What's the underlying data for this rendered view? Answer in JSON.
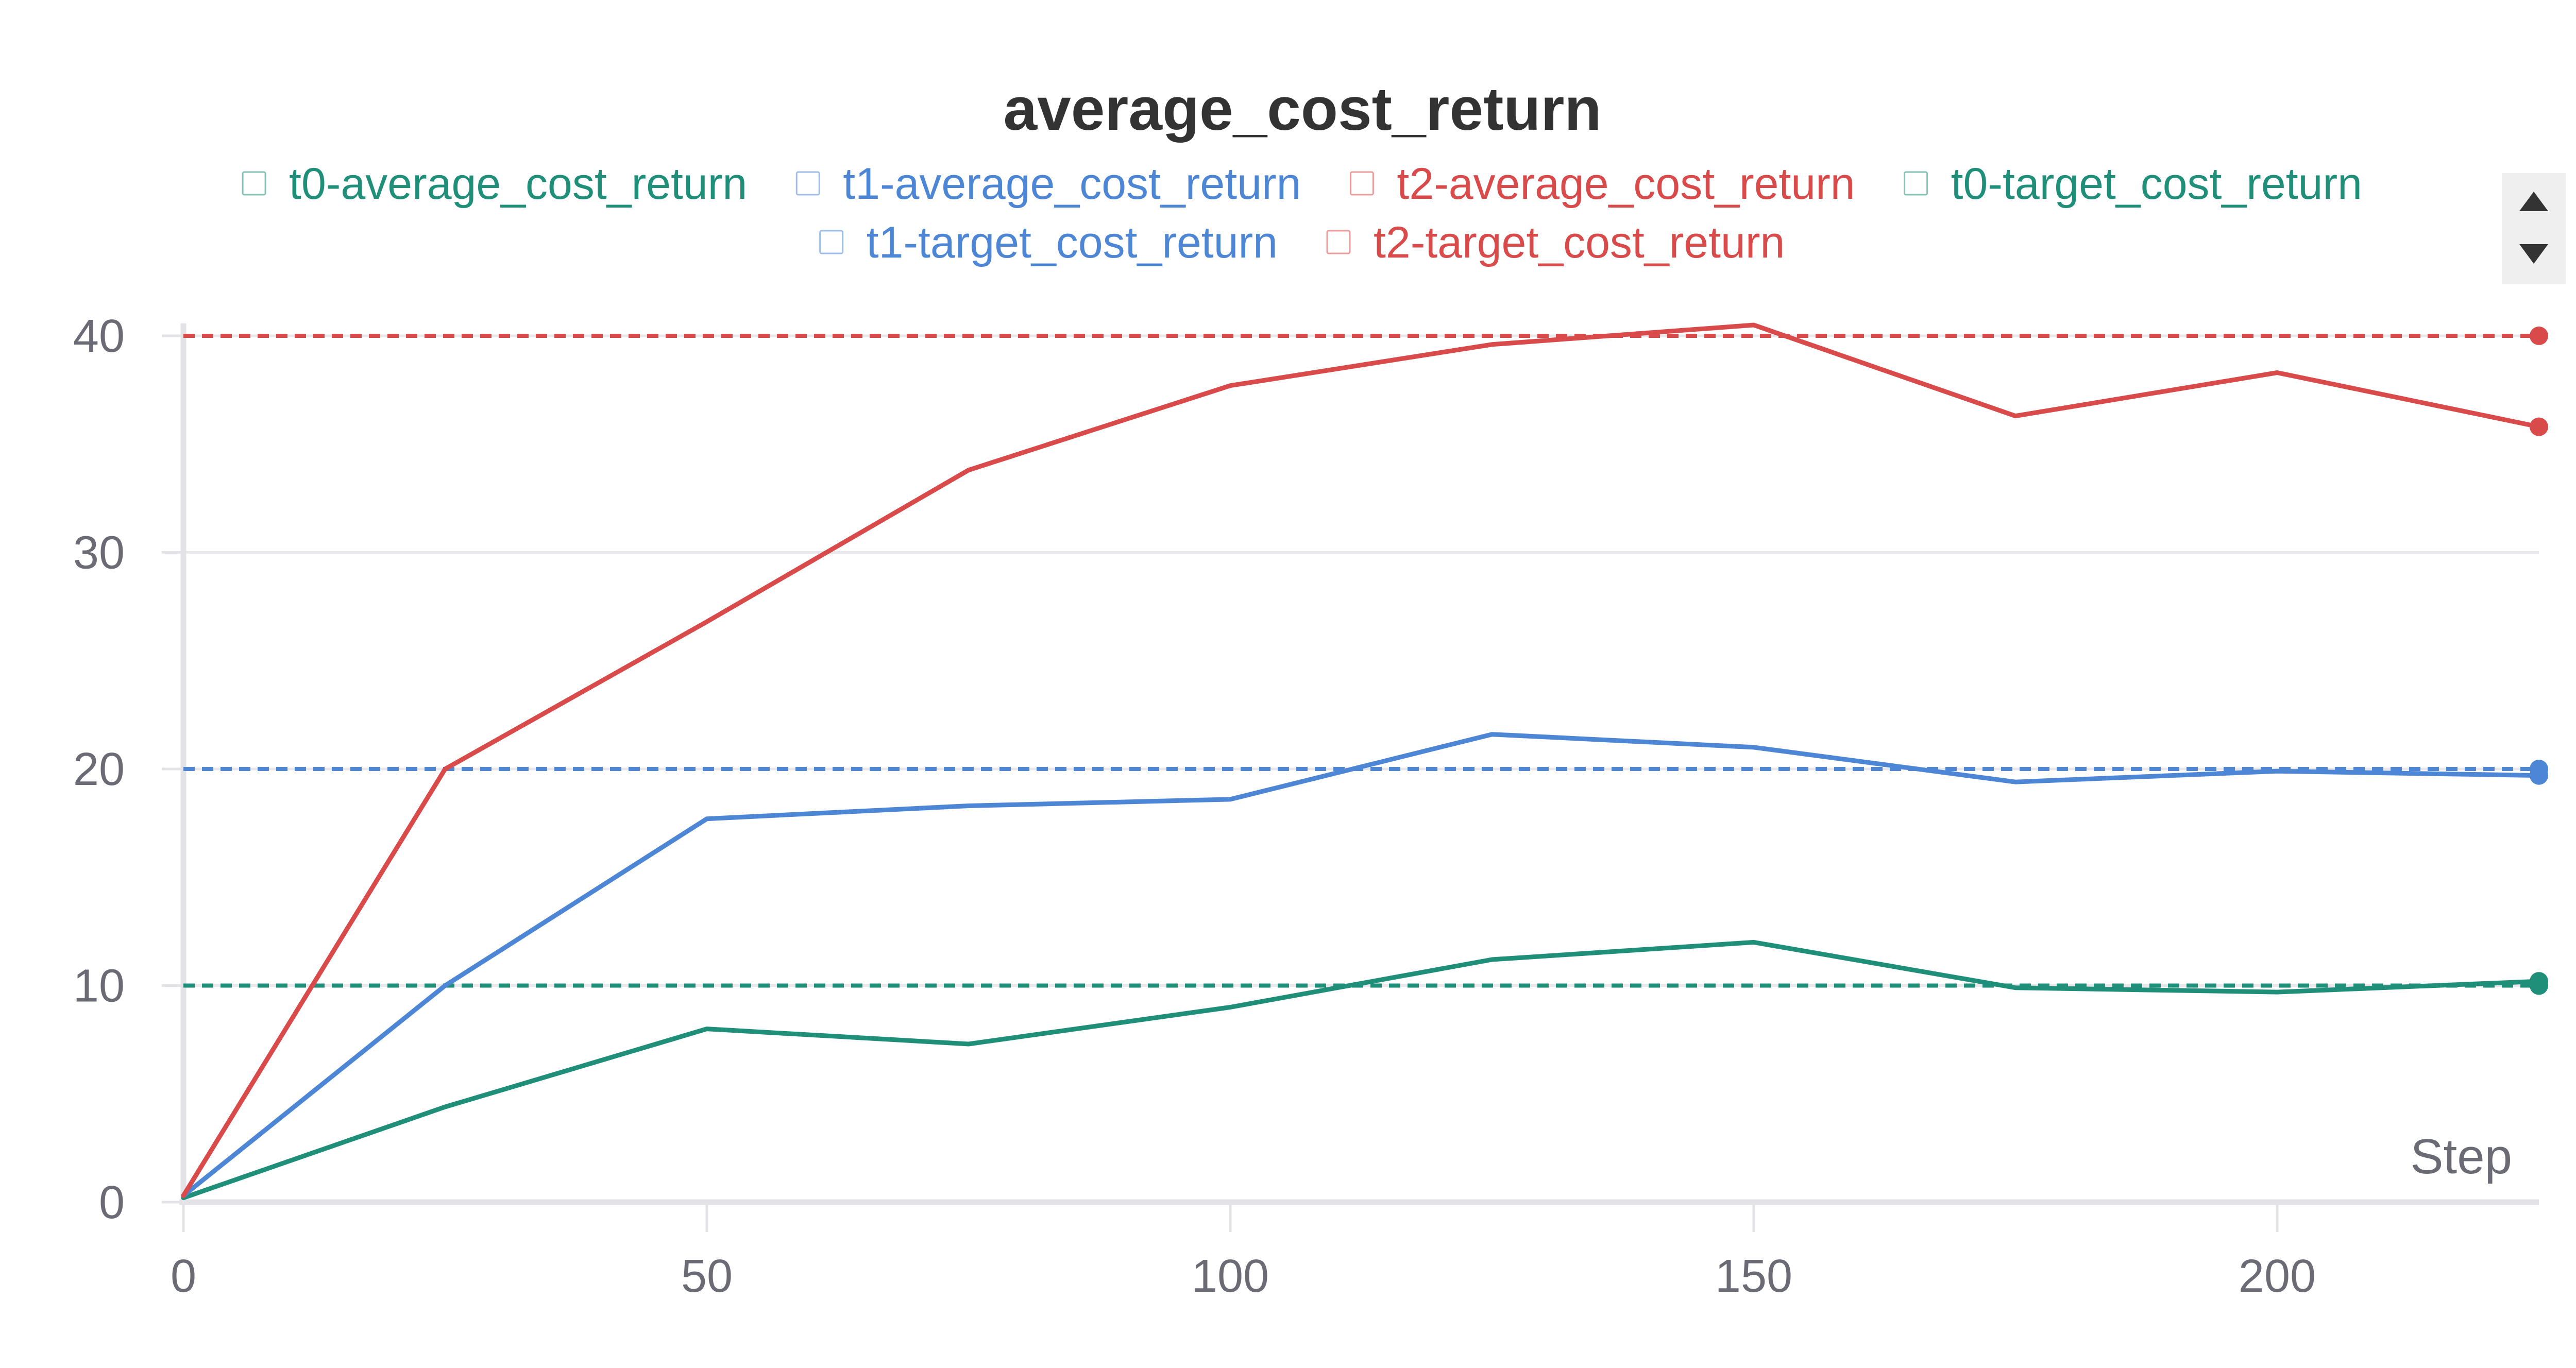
{
  "chart_data": {
    "type": "line",
    "title": "average_cost_return",
    "xlabel": "Step",
    "ylabel": "",
    "xlim": [
      0,
      225
    ],
    "ylim": [
      0,
      40
    ],
    "xticks": [
      0,
      50,
      100,
      150,
      200
    ],
    "yticks": [
      0,
      10,
      20,
      30,
      40
    ],
    "grid": "horizontal",
    "legend_position": "top",
    "series": [
      {
        "name": "t0-average_cost_return",
        "color": "#1f8f7a",
        "style": "solid",
        "x": [
          0,
          25,
          50,
          75,
          100,
          125,
          150,
          175,
          200,
          225
        ],
        "y": [
          0.2,
          4.4,
          8.0,
          7.3,
          9.0,
          11.2,
          12.0,
          9.9,
          9.7,
          10.2
        ]
      },
      {
        "name": "t1-average_cost_return",
        "color": "#4e86d6",
        "style": "solid",
        "x": [
          0,
          25,
          50,
          75,
          100,
          125,
          150,
          175,
          200,
          225
        ],
        "y": [
          0.3,
          10.0,
          17.7,
          18.3,
          18.6,
          21.6,
          21.0,
          19.4,
          19.9,
          19.7
        ]
      },
      {
        "name": "t2-average_cost_return",
        "color": "#d94a4a",
        "style": "solid",
        "x": [
          0,
          25,
          50,
          75,
          100,
          125,
          150,
          175,
          200,
          225
        ],
        "y": [
          0.3,
          20.0,
          26.8,
          33.8,
          37.7,
          39.6,
          40.5,
          36.3,
          38.3,
          35.8
        ]
      },
      {
        "name": "t0-target_cost_return",
        "color": "#1f8f7a",
        "style": "dashed",
        "x": [
          0,
          225
        ],
        "y": [
          10,
          10
        ]
      },
      {
        "name": "t1-target_cost_return",
        "color": "#4e86d6",
        "style": "dashed",
        "x": [
          0,
          225
        ],
        "y": [
          20,
          20
        ]
      },
      {
        "name": "t2-target_cost_return",
        "color": "#d94a4a",
        "style": "dashed",
        "x": [
          0,
          225
        ],
        "y": [
          40,
          40
        ]
      }
    ]
  },
  "legend_rows": [
    [
      "t0-average_cost_return",
      "t1-average_cost_return",
      "t2-average_cost_return",
      "t0-target_cost_return"
    ],
    [
      "t1-target_cost_return",
      "t2-target_cost_return"
    ]
  ],
  "colors": {
    "grid": "#e8e8ec",
    "axis": "#e3e3e7",
    "tick_text": "#6b6b76",
    "title_text": "#333333",
    "scroll_bg": "#efefef",
    "scroll_arrow": "#333333"
  },
  "legend_scroll": {
    "up_icon": "triangle-up-icon",
    "down_icon": "triangle-down-icon"
  }
}
